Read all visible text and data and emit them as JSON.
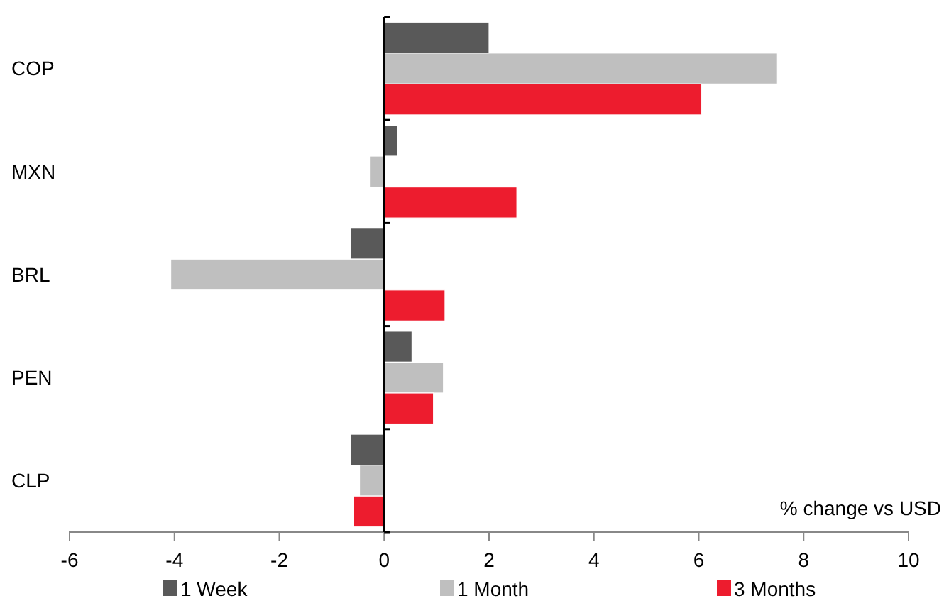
{
  "chart_data": {
    "type": "bar",
    "orientation": "horizontal",
    "categories": [
      "COP",
      "MXN",
      "BRL",
      "PEN",
      "CLP"
    ],
    "series": [
      {
        "name": "1 Week",
        "color": "#595959",
        "values": [
          2.0,
          0.25,
          -0.64,
          0.53,
          -0.64
        ]
      },
      {
        "name": "1 Month",
        "color": "#bfbfbf",
        "values": [
          7.5,
          -0.28,
          -4.07,
          1.13,
          -0.47
        ]
      },
      {
        "name": "3 Months",
        "color": "#ed1c2e",
        "values": [
          6.05,
          2.53,
          1.16,
          0.94,
          -0.58
        ]
      }
    ],
    "xlim": [
      -6,
      10
    ],
    "xticks": [
      -6,
      -4,
      -2,
      0,
      2,
      4,
      6,
      8,
      10
    ],
    "xlabel": "% change vs USD",
    "legend": "bottom"
  }
}
